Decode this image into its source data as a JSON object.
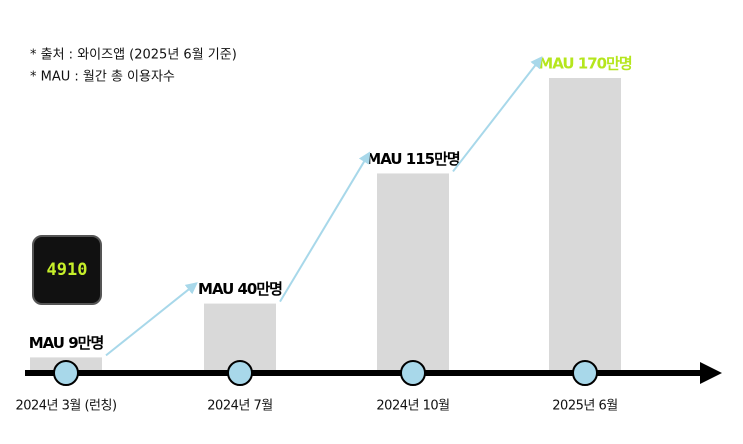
{
  "notes": [
    "* 출처 : 와이즈앱 (2025년 6월 기준)",
    "* MAU : 월간 총 이용자수"
  ],
  "icon": {
    "text": "4910"
  },
  "chart_data": {
    "type": "bar",
    "categories": [
      "2024년 3월 (런칭)",
      "2024년 7월",
      "2024년 10월",
      "2025년 6월"
    ],
    "values": [
      9,
      40,
      115,
      170
    ],
    "value_labels": [
      "MAU 9만명",
      "MAU 40만명",
      "MAU 115만명",
      "MAU 170만명"
    ],
    "value_label_colors": [
      "#000000",
      "#000000",
      "#000000",
      "#b5e61d"
    ],
    "color": "#d9d9d9",
    "marker_color": "#a8d8ea",
    "arrow_color": "#a8d8ea"
  }
}
